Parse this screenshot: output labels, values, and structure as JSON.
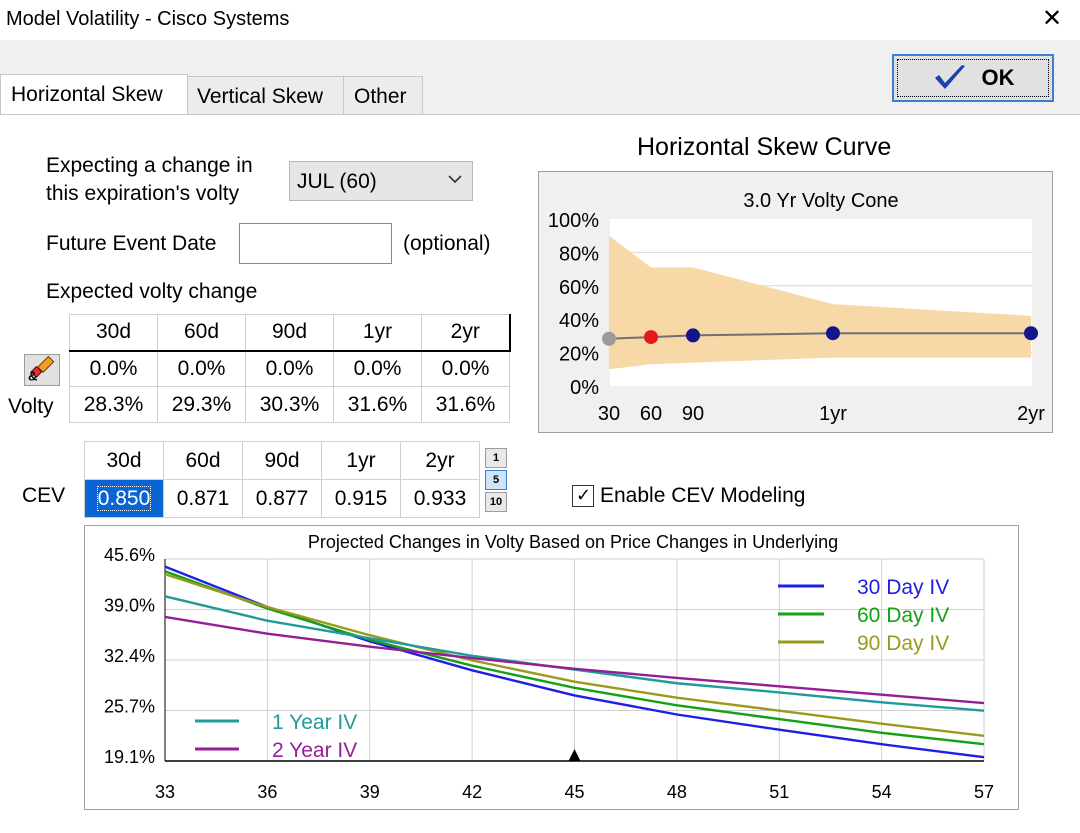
{
  "window": {
    "title": "Model Volatility - Cisco Systems",
    "close_glyph": "✕"
  },
  "tabs": [
    {
      "label": "Horizontal Skew",
      "active": true
    },
    {
      "label": "Vertical Skew",
      "active": false
    },
    {
      "label": "Other",
      "active": false
    }
  ],
  "ok_button": {
    "label": "OK",
    "icon": "checkmark-icon",
    "check_color": "#1a3fb0"
  },
  "expiration": {
    "label_line1": "Expecting a change in",
    "label_line2": "this expiration's volty",
    "selected": "JUL (60)"
  },
  "event": {
    "label": "Future Event Date",
    "value": "",
    "hint": "(optional)"
  },
  "volty_grid": {
    "title": "Expected volty change",
    "columns": [
      "30d",
      "60d",
      "90d",
      "1yr",
      "2yr"
    ],
    "change_row": [
      "0.0%",
      "0.0%",
      "0.0%",
      "0.0%",
      "0.0%"
    ],
    "volty_label": "Volty",
    "volty_row": [
      "28.3%",
      "29.3%",
      "30.3%",
      "31.6%",
      "31.6%"
    ],
    "edit_icon": "pencil-eraser-icon"
  },
  "cev_grid": {
    "label": "CEV",
    "columns": [
      "30d",
      "60d",
      "90d",
      "1yr",
      "2yr"
    ],
    "values": [
      "0.850",
      "0.871",
      "0.877",
      "0.915",
      "0.933"
    ],
    "selected_index": 0,
    "step_buttons": [
      "1",
      "5",
      "10"
    ],
    "active_step": "5"
  },
  "cev_toggle": {
    "label": "Enable CEV Modeling",
    "checked": true,
    "glyph": "✓"
  },
  "skew_chart": {
    "heading": "Horizontal Skew Curve",
    "chart_data": {
      "type": "line",
      "title": "3.0 Yr Volty Cone",
      "y_ticks": [
        "100%",
        "80%",
        "60%",
        "40%",
        "20%",
        "0%"
      ],
      "x_ticks": [
        "30",
        "60",
        "90",
        "1yr",
        "2yr"
      ],
      "ylim": [
        0,
        100
      ],
      "cone_upper": [
        [
          30,
          90
        ],
        [
          60,
          71
        ],
        [
          90,
          71
        ],
        [
          365,
          49
        ],
        [
          730,
          42
        ]
      ],
      "cone_lower": [
        [
          30,
          10
        ],
        [
          60,
          13
        ],
        [
          90,
          14
        ],
        [
          365,
          17
        ],
        [
          730,
          17
        ]
      ],
      "curve": [
        [
          30,
          28.3
        ],
        [
          60,
          29.3
        ],
        [
          90,
          30.3
        ],
        [
          365,
          31.6
        ],
        [
          730,
          31.6
        ]
      ],
      "points": [
        {
          "x": 30,
          "y": 28.3,
          "color": "#9a9a9a"
        },
        {
          "x": 60,
          "y": 29.3,
          "color": "#e61919"
        },
        {
          "x": 90,
          "y": 30.3,
          "color": "#14148c"
        },
        {
          "x": 365,
          "y": 31.6,
          "color": "#14148c"
        },
        {
          "x": 730,
          "y": 31.6,
          "color": "#14148c"
        }
      ],
      "cone_color": "#f7d9a8",
      "curve_color": "#707070"
    }
  },
  "proj_chart": {
    "chart_data": {
      "type": "line",
      "title": "Projected Changes in Volty Based on Price Changes in Underlying",
      "x_ticks": [
        "33",
        "36",
        "39",
        "42",
        "45",
        "48",
        "51",
        "54",
        "57"
      ],
      "y_ticks": [
        "45.6%",
        "39.0%",
        "32.4%",
        "25.7%",
        "19.1%"
      ],
      "xlim": [
        33,
        57
      ],
      "ylim": [
        19.1,
        45.6
      ],
      "current_price": 45,
      "series": [
        {
          "name": "30 Day IV",
          "color": "#1e1ee6",
          "x": [
            33,
            36,
            39,
            42,
            45,
            48,
            51,
            54,
            57
          ],
          "y": [
            44.6,
            39.3,
            34.8,
            31.0,
            27.7,
            25.2,
            23.2,
            21.3,
            19.6
          ]
        },
        {
          "name": "60 Day IV",
          "color": "#16a016",
          "x": [
            33,
            36,
            39,
            42,
            45,
            48,
            51,
            54,
            57
          ],
          "y": [
            44.0,
            39.1,
            35.0,
            31.6,
            28.7,
            26.4,
            24.6,
            22.8,
            21.3
          ]
        },
        {
          "name": "90 Day IV",
          "color": "#9a9a1e",
          "x": [
            33,
            36,
            39,
            42,
            45,
            48,
            51,
            54,
            57
          ],
          "y": [
            43.6,
            39.3,
            35.6,
            32.3,
            29.5,
            27.4,
            25.7,
            24.0,
            22.4
          ]
        },
        {
          "name": "1 Year IV",
          "color": "#209a9a",
          "x": [
            33,
            36,
            39,
            42,
            45,
            48,
            51,
            54,
            57
          ],
          "y": [
            40.7,
            37.5,
            35.2,
            32.9,
            31.1,
            29.3,
            28.1,
            26.8,
            25.7
          ]
        },
        {
          "name": "2 Year IV",
          "color": "#951e95",
          "x": [
            33,
            36,
            39,
            42,
            45,
            48,
            51,
            54,
            57
          ],
          "y": [
            38.0,
            35.8,
            34.1,
            32.6,
            31.2,
            30.0,
            28.9,
            27.8,
            26.7
          ]
        }
      ],
      "legend_top_right": [
        "30 Day IV",
        "60 Day IV",
        "90 Day IV"
      ],
      "legend_bottom_left": [
        "1 Year IV",
        "2 Year IV"
      ]
    }
  }
}
